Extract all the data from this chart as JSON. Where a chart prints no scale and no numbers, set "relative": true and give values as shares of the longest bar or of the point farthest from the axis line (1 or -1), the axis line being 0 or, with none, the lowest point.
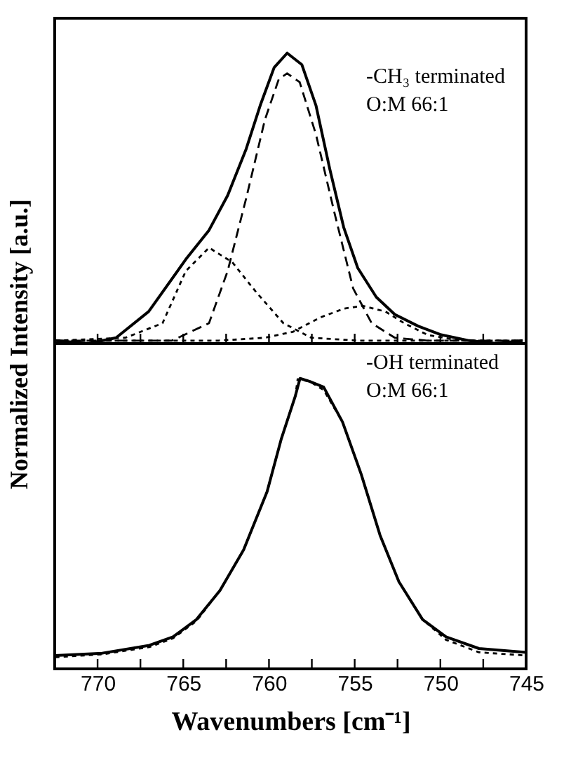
{
  "chart_data": [
    {
      "type": "line",
      "ylabel": "Normalized Intensity [a.u.]",
      "annotations": [
        "-CH₃ terminated",
        "O:M 66:1"
      ],
      "relative": true,
      "xlim": [
        772.5,
        745
      ],
      "xticks": [
        {
          "value": 770,
          "label": null
        },
        {
          "value": 767.5,
          "label": null
        },
        {
          "value": 765,
          "label": null
        },
        {
          "value": 762.5,
          "label": null
        },
        {
          "value": 760,
          "label": null
        },
        {
          "value": 757.5,
          "label": null
        },
        {
          "value": 755,
          "label": null
        },
        {
          "value": 752.5,
          "label": null
        },
        {
          "value": 750,
          "label": null
        },
        {
          "value": 747.5,
          "label": null
        },
        {
          "value": 745,
          "label": null
        }
      ],
      "tick_labels": false,
      "series": [
        {
          "color": "#000000",
          "line_style": "solid",
          "x": [
            772.44,
            770.54,
            768.92,
            767.02,
            764.85,
            763.5,
            762.41,
            761.33,
            760.51,
            759.7,
            758.94,
            758.08,
            757.26,
            756.45,
            755.64,
            754.82,
            753.74,
            752.66,
            751.3,
            749.95,
            748.32,
            746.69,
            745.2
          ],
          "values": [
            0.01,
            0,
            0.02,
            0.11,
            0.29,
            0.39,
            0.51,
            0.67,
            0.82,
            0.95,
            1.0,
            0.96,
            0.82,
            0.6,
            0.4,
            0.26,
            0.16,
            0.1,
            0.06,
            0.03,
            0.01,
            0,
            0.01
          ]
        },
        {
          "color": "#000000",
          "line_style": "dashed",
          "x": [
            772.44,
            765.66,
            763.5,
            762.41,
            761.33,
            760.24,
            759.43,
            758.94,
            758.21,
            757.26,
            756.18,
            755.09,
            754.01,
            752.66,
            750.76,
            745.2
          ],
          "values": [
            0.01,
            0.01,
            0.07,
            0.25,
            0.5,
            0.77,
            0.91,
            0.93,
            0.9,
            0.72,
            0.45,
            0.19,
            0.07,
            0.02,
            0.01,
            0.01
          ]
        },
        {
          "color": "#000000",
          "line_style": "dotted",
          "x": [
            772.44,
            768.37,
            766.21,
            764.85,
            763.5,
            762.14,
            760.79,
            759.16,
            757.53,
            754.82,
            745.2
          ],
          "values": [
            0.01,
            0.02,
            0.07,
            0.25,
            0.33,
            0.28,
            0.18,
            0.07,
            0.02,
            0.01,
            0.01
          ]
        },
        {
          "color": "#000000",
          "line_style": "dotted",
          "x": [
            772.44,
            762.95,
            760.24,
            758.62,
            757.0,
            755.64,
            754.55,
            753.2,
            752.11,
            750.76,
            748.86,
            745.2
          ],
          "values": [
            0.01,
            0.01,
            0.02,
            0.04,
            0.09,
            0.12,
            0.13,
            0.11,
            0.07,
            0.03,
            0.01,
            0.01
          ]
        }
      ]
    },
    {
      "type": "line",
      "xlabel": "Wavenumbers [cm⁻¹]",
      "annotations": [
        "-OH  terminated",
        "O:M 66:1"
      ],
      "relative": true,
      "xlim": [
        772.5,
        745
      ],
      "xticks": [
        770,
        {
          "value": 767.5,
          "label": null
        },
        765,
        {
          "value": 762.5,
          "label": null
        },
        760,
        {
          "value": 757.5,
          "label": null
        },
        755,
        {
          "value": 752.5,
          "label": null
        },
        750,
        {
          "value": 747.5,
          "label": null
        },
        745
      ],
      "tick_labels": "x",
      "series": [
        {
          "color": "#000000",
          "line_style": "solid",
          "x": [
            772.47,
            769.73,
            766.98,
            765.6,
            764.23,
            762.86,
            761.48,
            760.11,
            759.29,
            758.46,
            758.19,
            757.64,
            756.81,
            755.71,
            754.62,
            753.52,
            752.42,
            751.04,
            749.67,
            747.75,
            745.0
          ],
          "values": [
            0.046,
            0.054,
            0.081,
            0.11,
            0.17,
            0.27,
            0.41,
            0.61,
            0.79,
            0.94,
            1.0,
            0.99,
            0.97,
            0.85,
            0.67,
            0.46,
            0.3,
            0.17,
            0.11,
            0.07,
            0.057
          ]
        },
        {
          "color": "#000000",
          "line_style": "dotted",
          "x": [
            772.47,
            769.73,
            766.98,
            765.6,
            764.23,
            762.86,
            761.48,
            760.11,
            759.29,
            758.46,
            758.33,
            757.64,
            756.81,
            755.71,
            754.62,
            753.52,
            752.42,
            751.04,
            749.67,
            747.75,
            745.0
          ],
          "values": [
            0.04,
            0.05,
            0.075,
            0.105,
            0.165,
            0.27,
            0.41,
            0.61,
            0.79,
            0.94,
            0.997,
            0.99,
            0.96,
            0.85,
            0.67,
            0.46,
            0.3,
            0.17,
            0.1,
            0.057,
            0.046
          ]
        }
      ]
    }
  ]
}
